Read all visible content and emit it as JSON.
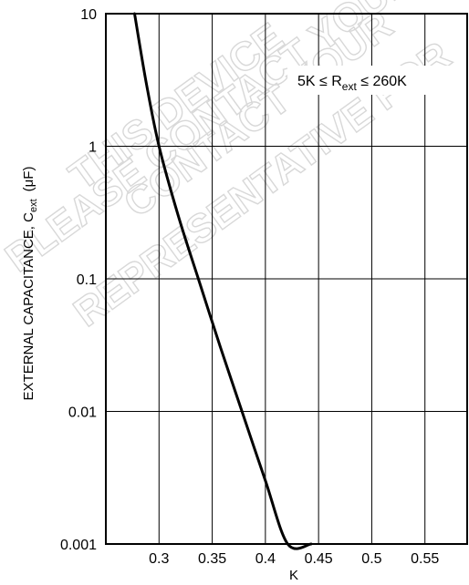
{
  "chart_data": {
    "type": "line",
    "title": "",
    "xlabel": "K",
    "ylabel_main": "EXTERNAL CAPACITANCE, C",
    "ylabel_sub": "ext",
    "ylabel_unit": "(μF)",
    "x_scale": "linear",
    "y_scale": "log",
    "xlim": [
      0.25,
      0.6
    ],
    "ylim": [
      0.001,
      10
    ],
    "x_ticks": [
      0.3,
      0.35,
      0.4,
      0.45,
      0.5,
      0.55
    ],
    "x_tick_labels": [
      "0.3",
      "0.35",
      "0.4",
      "0.45",
      "0.5",
      "0.55"
    ],
    "y_ticks": [
      0.001,
      0.01,
      0.1,
      1,
      10
    ],
    "y_tick_labels": [
      "0.001",
      "0.01",
      "0.1",
      "1",
      "10"
    ],
    "grid": true,
    "annotation": {
      "pre": "5K ≤ R",
      "sub": "ext",
      "post": " ≤ 260K"
    },
    "series": [
      {
        "x": [
          0.277,
          0.288,
          0.3,
          0.318,
          0.337,
          0.358,
          0.378,
          0.4,
          0.421,
          0.443
        ],
        "y": [
          10,
          3,
          1,
          0.3,
          0.1,
          0.03,
          0.01,
          0.003,
          0.001,
          0.001
        ],
        "color": "#000000"
      }
    ]
  },
  "watermark": {
    "lines": [
      "THIS DEVICE",
      "CONTACT YOUR",
      "PLEASE CONTACT YOUR",
      "REPRESENTATIVE FOR"
    ]
  }
}
